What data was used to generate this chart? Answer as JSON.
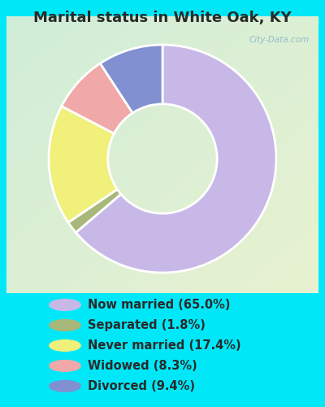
{
  "title": "Marital status in White Oak, KY",
  "slices": [
    {
      "label": "Now married (65.0%)",
      "value": 65.0,
      "color": "#c8b8e8"
    },
    {
      "label": "Separated (1.8%)",
      "value": 1.8,
      "color": "#a8b87a"
    },
    {
      "label": "Never married (17.4%)",
      "value": 17.4,
      "color": "#f0f07a"
    },
    {
      "label": "Widowed (8.3%)",
      "value": 8.3,
      "color": "#f0a8a8"
    },
    {
      "label": "Divorced (9.4%)",
      "value": 9.4,
      "color": "#8090d0"
    }
  ],
  "bg_color": "#00e8f8",
  "chart_bg_colors": [
    "#c8ecd8",
    "#e0f0d0"
  ],
  "watermark": "City-Data.com",
  "title_fontsize": 13,
  "title_color": "#2a2a2a",
  "legend_fontsize": 10.5,
  "donut_width": 0.52,
  "wedge_edge_color": "white",
  "wedge_linewidth": 2.0,
  "start_angle": 90
}
